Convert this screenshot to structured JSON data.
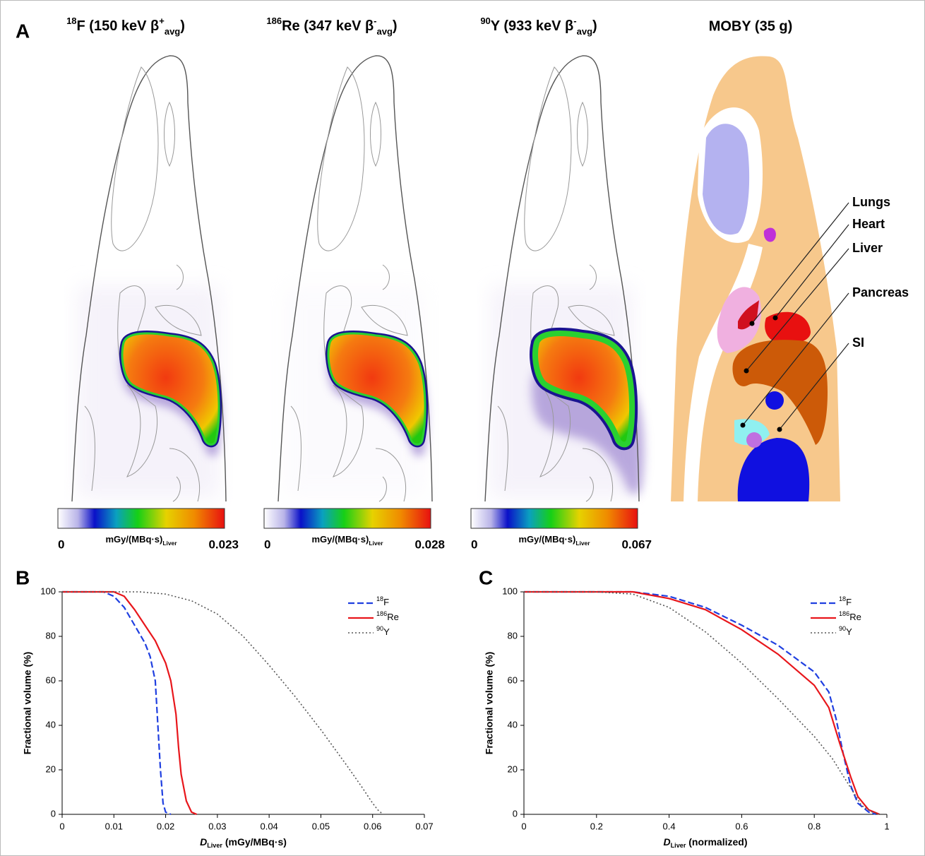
{
  "panel_a": {
    "label": "A",
    "images": [
      {
        "title_parts": [
          "18",
          "F (150 keV β",
          "+",
          "avg",
          ")"
        ],
        "colorbar": {
          "min": 0,
          "max": 0.023,
          "unit_parts": [
            "mGy/(MBq·s)",
            "Liver"
          ]
        }
      },
      {
        "title_parts": [
          "186",
          "Re (347 keV β",
          "-",
          "avg",
          ")"
        ],
        "colorbar": {
          "min": 0,
          "max": 0.028,
          "unit_parts": [
            "mGy/(MBq·s)",
            "Liver"
          ]
        }
      },
      {
        "title_parts": [
          "90",
          "Y (933 keV β",
          "-",
          "avg",
          ")"
        ],
        "colorbar": {
          "min": 0,
          "max": 0.067,
          "unit_parts": [
            "mGy/(MBq·s)",
            "Liver"
          ]
        }
      }
    ],
    "moby": {
      "title": "MOBY (35 g)",
      "organs": [
        "Lungs",
        "Heart",
        "Liver",
        "Pancreas",
        "SI"
      ]
    }
  },
  "chart_data": [
    {
      "type": "line",
      "label": "B",
      "ylabel": "Fractional volume (%)",
      "xlabel_parts": [
        "D",
        "Liver",
        " (mGy/MBq·s)"
      ],
      "xlim": [
        0,
        0.07
      ],
      "ylim": [
        0,
        100
      ],
      "xticks": [
        0,
        0.01,
        0.02,
        0.03,
        0.04,
        0.05,
        0.06,
        0.07
      ],
      "yticks": [
        0,
        20,
        40,
        60,
        80,
        100
      ],
      "legend": "upper right",
      "series": [
        {
          "name": "18F",
          "color": "#1f3fe0",
          "dash": "dashed",
          "x": [
            0,
            0.008,
            0.01,
            0.012,
            0.014,
            0.016,
            0.017,
            0.018,
            0.0185,
            0.019,
            0.0195,
            0.02,
            0.021
          ],
          "values": [
            100,
            100,
            98,
            93,
            85,
            77,
            71,
            60,
            40,
            20,
            5,
            1,
            0
          ]
        },
        {
          "name": "186Re",
          "color": "#e8161b",
          "dash": "solid",
          "x": [
            0,
            0.01,
            0.012,
            0.014,
            0.016,
            0.018,
            0.02,
            0.021,
            0.022,
            0.0225,
            0.023,
            0.024,
            0.025,
            0.026
          ],
          "values": [
            100,
            100,
            98,
            92,
            85,
            78,
            68,
            60,
            45,
            30,
            18,
            6,
            1,
            0
          ]
        },
        {
          "name": "90Y",
          "color": "#555555",
          "dash": "dotted",
          "x": [
            0,
            0.015,
            0.02,
            0.025,
            0.03,
            0.035,
            0.04,
            0.045,
            0.05,
            0.055,
            0.058,
            0.06,
            0.061,
            0.062
          ],
          "values": [
            100,
            100,
            99,
            96,
            90,
            80,
            67,
            53,
            38,
            22,
            12,
            5,
            2,
            0
          ]
        }
      ]
    },
    {
      "type": "line",
      "label": "C",
      "ylabel": "Fractional volume (%)",
      "xlabel_parts": [
        "D",
        "Liver",
        " (normalized)"
      ],
      "xlim": [
        0,
        1
      ],
      "ylim": [
        0,
        100
      ],
      "xticks": [
        0,
        0.2,
        0.4,
        0.6,
        0.8,
        1
      ],
      "yticks": [
        0,
        20,
        40,
        60,
        80,
        100
      ],
      "legend": "upper right",
      "series": [
        {
          "name": "18F",
          "color": "#1f3fe0",
          "dash": "dashed",
          "x": [
            0,
            0.3,
            0.4,
            0.5,
            0.6,
            0.7,
            0.8,
            0.84,
            0.86,
            0.88,
            0.9,
            0.92,
            0.95,
            0.97
          ],
          "values": [
            100,
            100,
            98,
            93,
            85,
            76,
            64,
            55,
            43,
            27,
            13,
            5,
            1,
            0
          ]
        },
        {
          "name": "186Re",
          "color": "#e8161b",
          "dash": "solid",
          "x": [
            0,
            0.3,
            0.4,
            0.5,
            0.6,
            0.7,
            0.8,
            0.84,
            0.87,
            0.9,
            0.92,
            0.95,
            0.98
          ],
          "values": [
            100,
            100,
            97,
            92,
            83,
            72,
            58,
            48,
            32,
            17,
            8,
            2,
            0
          ]
        },
        {
          "name": "90Y",
          "color": "#555555",
          "dash": "dotted",
          "x": [
            0,
            0.2,
            0.3,
            0.4,
            0.5,
            0.6,
            0.7,
            0.8,
            0.85,
            0.9,
            0.93,
            0.96,
            0.98
          ],
          "values": [
            100,
            100,
            99,
            93,
            82,
            68,
            52,
            35,
            25,
            12,
            4,
            1,
            0
          ]
        }
      ]
    }
  ]
}
